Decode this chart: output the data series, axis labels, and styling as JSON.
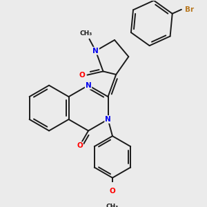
{
  "background_color": "#ebebeb",
  "bond_color": "#1a1a1a",
  "bond_width": 1.4,
  "atom_colors": {
    "N": "#0000ee",
    "O": "#ff0000",
    "Br": "#b87820",
    "C": "#1a1a1a"
  },
  "font_size_atom": 7.5
}
